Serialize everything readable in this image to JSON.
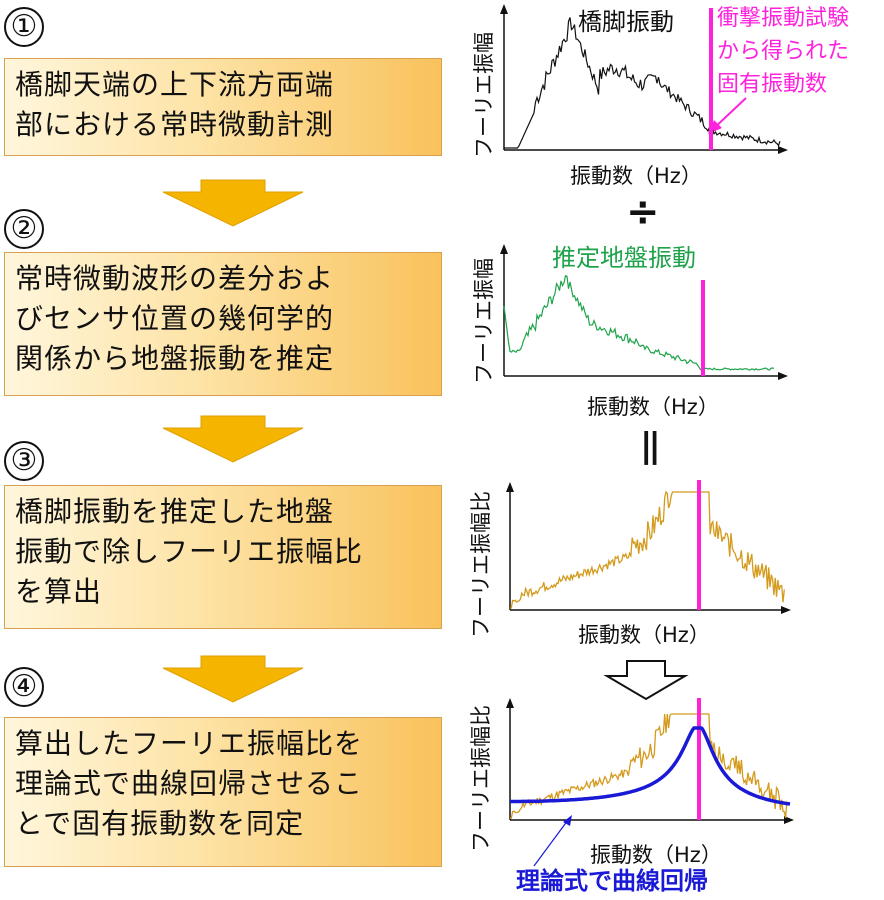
{
  "steps": [
    {
      "num": "①",
      "text": "橋脚天端の上下流方両端\n部における常時微動計測"
    },
    {
      "num": "②",
      "text": "常時微動波形の差分およ\nびセンサ位置の幾何学的\n関係から地盤振動を推定"
    },
    {
      "num": "③",
      "text": "橋脚振動を推定した地盤\n振動で除しフーリエ振幅比\nを算出"
    },
    {
      "num": "④",
      "text": "算出したフーリエ振幅比を\n理論式で曲線回帰させるこ\nとで固有振動数を同定"
    }
  ],
  "operators": {
    "divide": "÷",
    "equals": "||"
  },
  "colors": {
    "pier": "#111111",
    "ground": "#1ea34a",
    "ratio": "#d49a1c",
    "fit": "#1a1ad6",
    "natural_freq": "#ff22dd",
    "box_border": "#d8a050",
    "arrow": "#f5b400"
  },
  "annotations": {
    "natural_freq_label": "衝撃振動試験\nから得られた\n固有振動数",
    "fit_label": "理論式で曲線回帰"
  },
  "chart_data": [
    {
      "type": "line",
      "title": "橋脚振動",
      "xlabel": "振動数（Hz）",
      "ylabel": "フーリエ振幅",
      "series": [
        {
          "name": "橋脚振動"
        }
      ]
    },
    {
      "type": "line",
      "title": "推定地盤振動",
      "xlabel": "振動数（Hz）",
      "ylabel": "フーリエ振幅",
      "series": [
        {
          "name": "推定地盤振動"
        }
      ]
    },
    {
      "type": "line",
      "title": "",
      "xlabel": "振動数（Hz）",
      "ylabel": "フーリエ振幅比",
      "series": [
        {
          "name": ""
        }
      ]
    },
    {
      "type": "line",
      "title": "",
      "xlabel": "振動数（Hz）",
      "ylabel": "フーリエ振幅比",
      "series": [
        {
          "name": ""
        },
        {
          "name": "理論式で曲線回帰"
        }
      ]
    }
  ]
}
